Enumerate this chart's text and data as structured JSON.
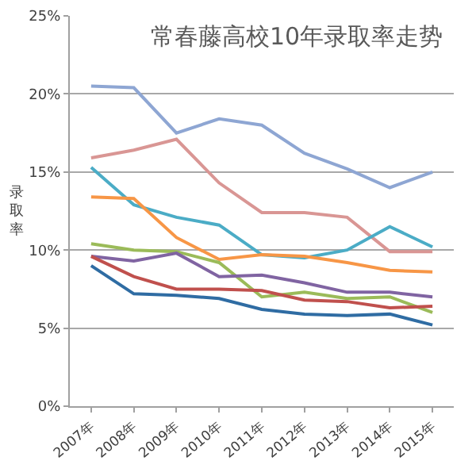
{
  "chart_data": {
    "type": "line",
    "title": "常春藤高校10年录取率走势",
    "ylabel": "录取率",
    "categories": [
      "2007年",
      "2008年",
      "2009年",
      "2010年",
      "2011年",
      "2012年",
      "2013年",
      "2014年",
      "2015年"
    ],
    "ylim": [
      0,
      25
    ],
    "yticks": [
      {
        "value": 0,
        "label": "0%"
      },
      {
        "value": 5,
        "label": "5%"
      },
      {
        "value": 10,
        "label": "10%"
      },
      {
        "value": 15,
        "label": "15%"
      },
      {
        "value": 20,
        "label": "20%"
      },
      {
        "value": 25,
        "label": "25%"
      }
    ],
    "grid": "y",
    "legend": false,
    "marker": "none",
    "line_style": "solid",
    "series": [
      {
        "color": "#8ea6d3",
        "values": [
          20.5,
          20.4,
          17.5,
          18.4,
          18.0,
          16.2,
          15.2,
          14.0,
          15.0
        ]
      },
      {
        "color": "#d99694",
        "values": [
          15.9,
          16.4,
          17.1,
          14.3,
          12.4,
          12.4,
          12.1,
          9.9,
          9.9
        ]
      },
      {
        "color": "#4bacc6",
        "values": [
          15.3,
          12.9,
          12.1,
          11.6,
          9.7,
          9.5,
          10.0,
          11.5,
          10.2
        ]
      },
      {
        "color": "#f79646",
        "values": [
          13.4,
          13.3,
          10.8,
          9.4,
          9.7,
          9.6,
          9.2,
          8.7,
          8.6
        ]
      },
      {
        "color": "#9bbb59",
        "values": [
          10.4,
          10.0,
          9.9,
          9.2,
          7.0,
          7.3,
          6.9,
          7.0,
          6.0
        ]
      },
      {
        "color": "#8064a2",
        "values": [
          9.6,
          9.3,
          9.8,
          8.3,
          8.4,
          7.9,
          7.3,
          7.3,
          7.0
        ]
      },
      {
        "color": "#c0504d",
        "values": [
          9.6,
          8.3,
          7.5,
          7.5,
          7.4,
          6.8,
          6.7,
          6.3,
          6.4
        ]
      },
      {
        "color": "#2f6ca3",
        "values": [
          9.0,
          7.2,
          7.1,
          6.9,
          6.2,
          5.9,
          5.8,
          5.9,
          5.2
        ]
      }
    ]
  }
}
